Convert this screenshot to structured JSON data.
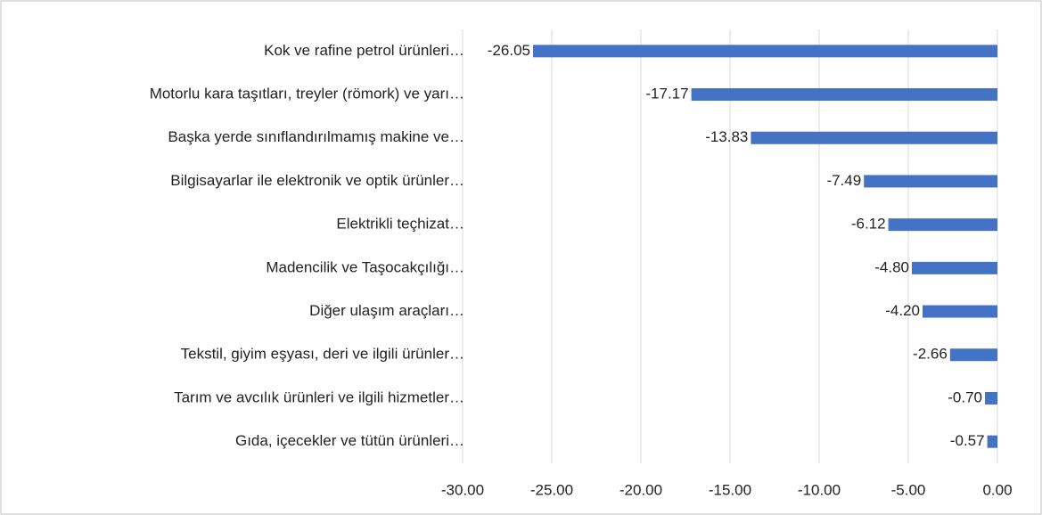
{
  "chart_data": {
    "type": "bar",
    "orientation": "horizontal",
    "categories": [
      "Kok ve rafine petrol ürünleri…",
      "Motorlu kara taşıtları, treyler (römork) ve yarı…",
      "Başka yerde sınıflandırılmamış makine ve…",
      "Bilgisayarlar ile elektronik ve optik ürünler…",
      "Elektrikli teçhizat…",
      "Madencilik ve Taşocakçılığı…",
      "Diğer ulaşım araçları…",
      "Tekstil, giyim eşyası, deri ve ilgili ürünler…",
      "Tarım ve avcılık ürünleri ve ilgili hizmetler…",
      "Gıda, içecekler ve tütün ürünleri…"
    ],
    "values": [
      -26.05,
      -17.17,
      -13.83,
      -7.49,
      -6.12,
      -4.8,
      -4.2,
      -2.66,
      -0.7,
      -0.57
    ],
    "value_labels": [
      "-26.05",
      "-17.17",
      "-13.83",
      "-7.49",
      "-6.12",
      "-4.80",
      "-4.20",
      "-2.66",
      "-0.70",
      "-0.57"
    ],
    "color": "#4472c4",
    "xlim": [
      -30,
      0
    ],
    "xticks": [
      {
        "value": -30,
        "label": "-30.00"
      },
      {
        "value": -25,
        "label": "-25.00"
      },
      {
        "value": -20,
        "label": "-20.00"
      },
      {
        "value": -15,
        "label": "-15.00"
      },
      {
        "value": -10,
        "label": "-10.00"
      },
      {
        "value": -5,
        "label": "-5.00"
      },
      {
        "value": 0,
        "label": "0.00"
      }
    ],
    "grid": true
  }
}
